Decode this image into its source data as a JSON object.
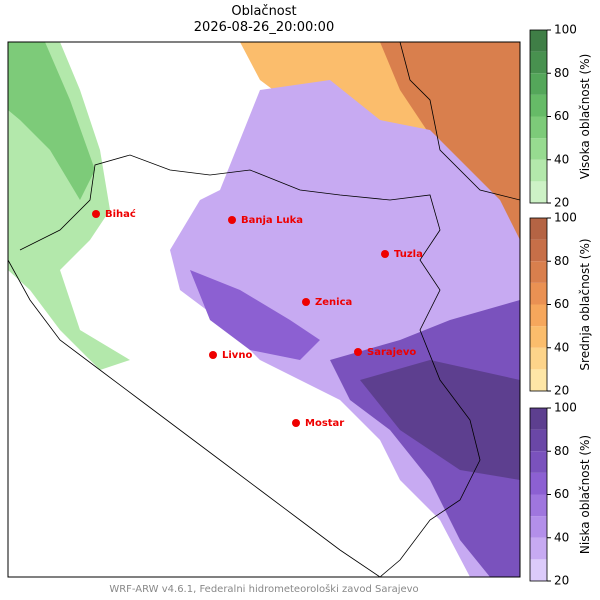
{
  "title": "Oblačnost",
  "subtitle": "2026-08-26_20:00:00",
  "cities": [
    {
      "label": "Bihać"
    },
    {
      "label": "Banja Luka"
    },
    {
      "label": "Tuzla"
    },
    {
      "label": "Zenica"
    },
    {
      "label": "Livno"
    },
    {
      "label": "Sarajevo"
    },
    {
      "label": "Mostar"
    }
  ],
  "colorbars": [
    {
      "label": "Visoka oblačnost (%)",
      "levels": [
        20,
        30,
        40,
        50,
        60,
        70,
        80,
        90,
        100
      ],
      "ticks": [
        20,
        40,
        60,
        80,
        100
      ],
      "colors": [
        "#cdf2c6",
        "#b3e8ab",
        "#97db90",
        "#7dcb79",
        "#66bb67",
        "#54a75a",
        "#48914f",
        "#3f7e46"
      ]
    },
    {
      "label": "Srednja oblačnost (%)",
      "levels": [
        20,
        30,
        40,
        50,
        60,
        70,
        80,
        90,
        100
      ],
      "ticks": [
        20,
        40,
        60,
        80,
        100
      ],
      "colors": [
        "#fee6a6",
        "#fdd48a",
        "#fbbd6c",
        "#f6a75c",
        "#ea9153",
        "#d97f4d",
        "#c76f48",
        "#b56444"
      ]
    },
    {
      "label": "Niska oblačnost (%)",
      "levels": [
        20,
        30,
        40,
        50,
        60,
        70,
        80,
        90,
        100
      ],
      "ticks": [
        20,
        40,
        60,
        80,
        100
      ],
      "colors": [
        "#dccbfa",
        "#c7aaf2",
        "#b38fea",
        "#9f76de",
        "#8c60d2",
        "#7a52bd",
        "#6a47a6",
        "#5d3f8f"
      ]
    }
  ],
  "footer": "WRF-ARW v4.6.1, Federalni hidrometeorološki zavod Sarajevo"
}
